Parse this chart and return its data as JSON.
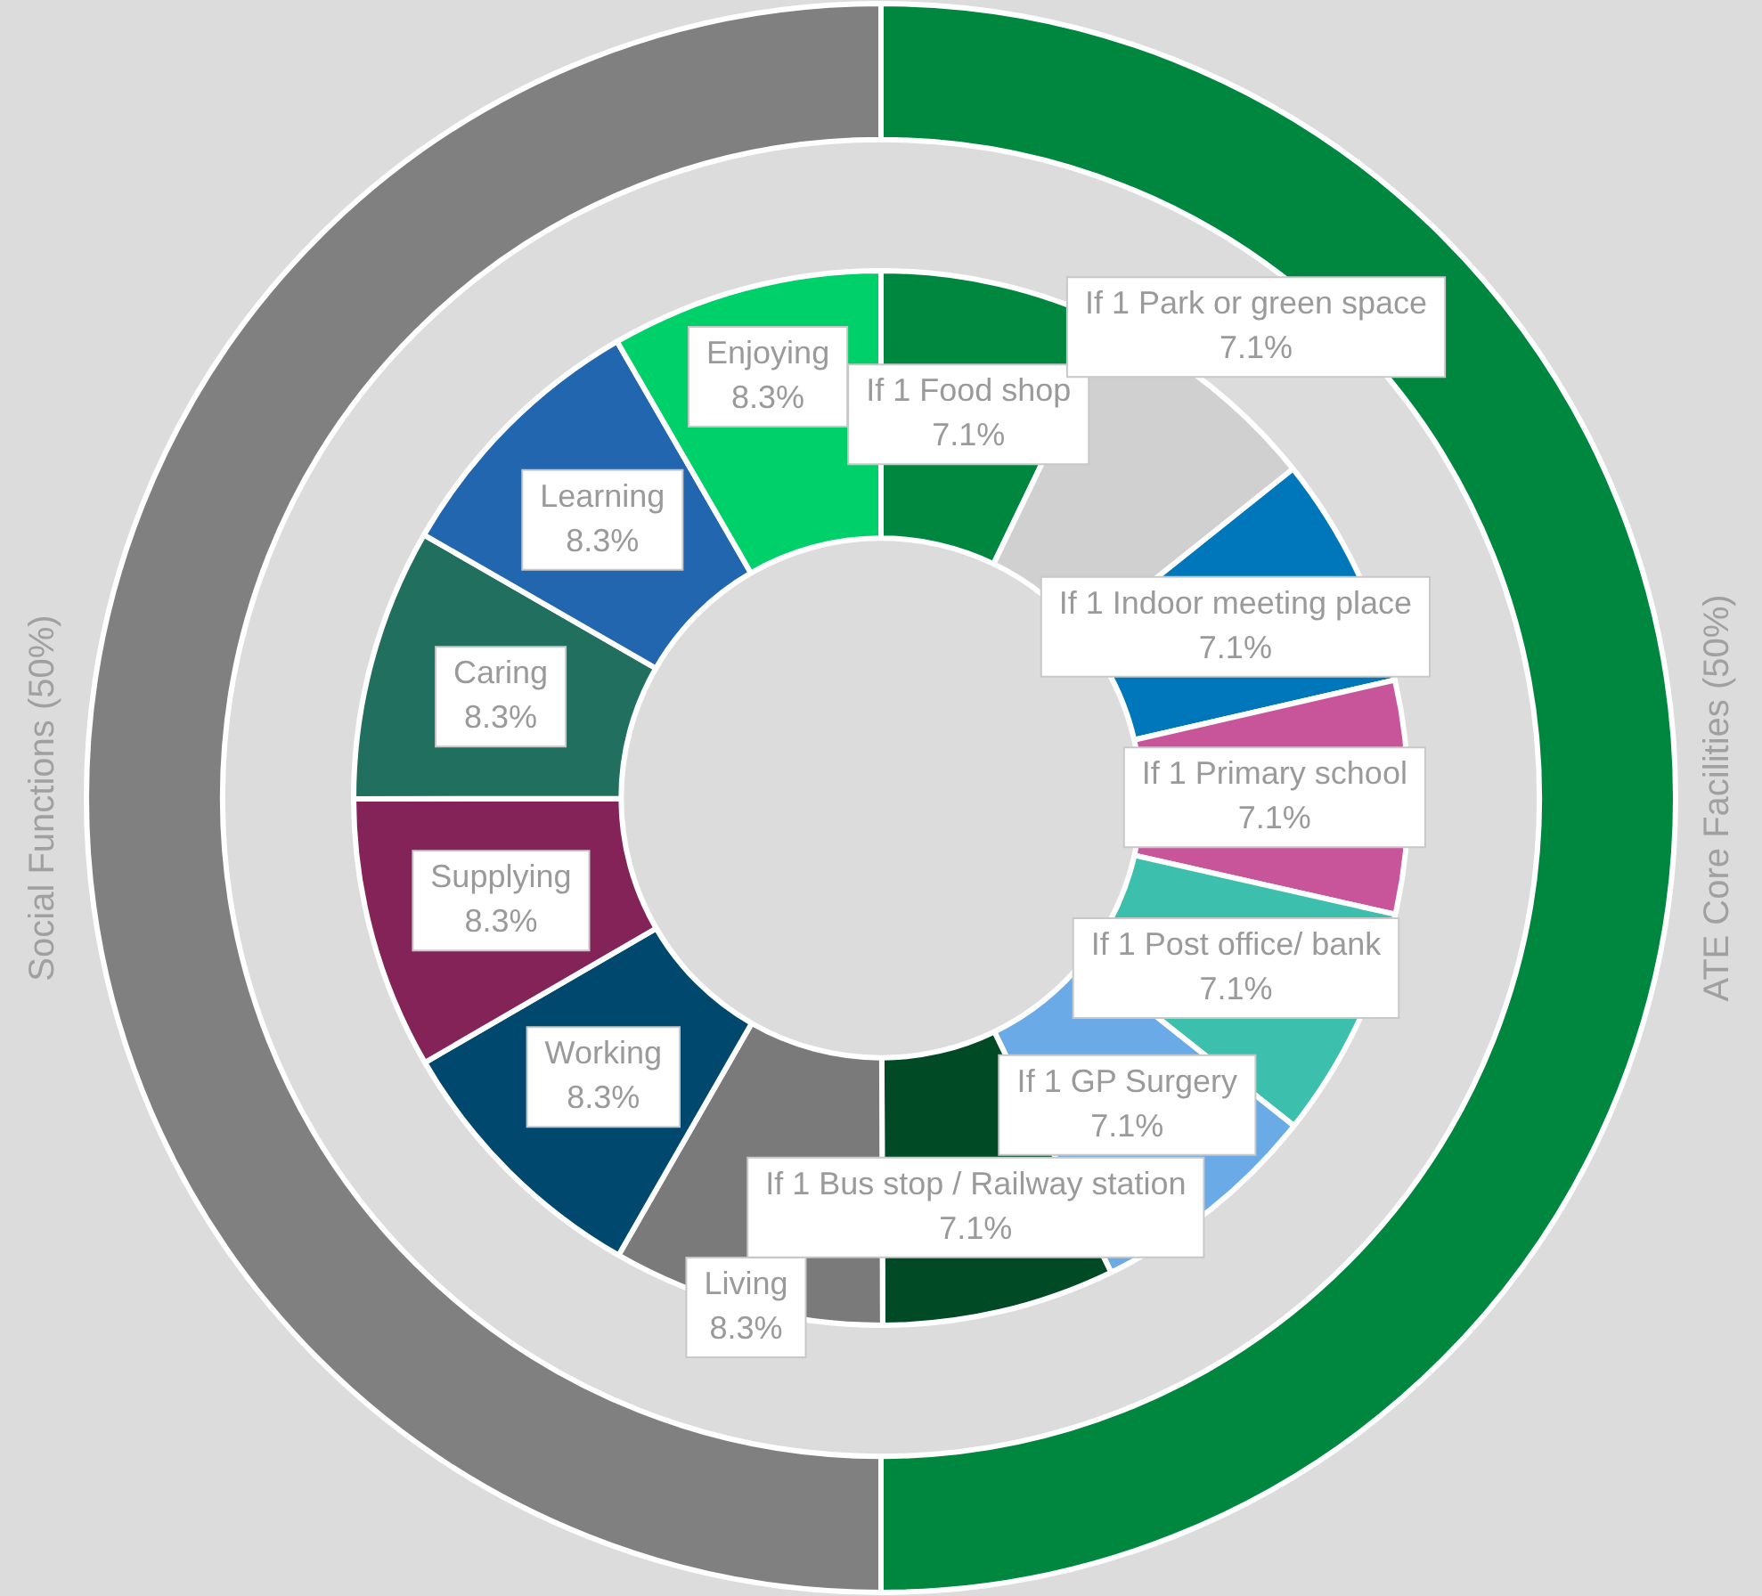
{
  "chart_data": [
    {
      "type": "donut",
      "categories": [
        "ATE Core Facilities",
        "Social Functions"
      ],
      "values": [
        50,
        50
      ],
      "value_labels": [
        "(50%)",
        "(50%)"
      ],
      "colors": [
        "#00873f",
        "#808080"
      ],
      "legend": false
    },
    {
      "type": "donut",
      "categories": [
        "If 1 Food shop",
        "If 1 Park or green space",
        "If 1 Indoor meeting place",
        "If 1 Primary school",
        "If 1 Post office/ bank",
        "If 1 GP Surgery",
        "If 1 Bus stop / Railway station",
        "Living",
        "Working",
        "Supplying",
        "Caring",
        "Learning",
        "Enjoying"
      ],
      "values": [
        7.1,
        7.1,
        7.1,
        7.1,
        7.1,
        7.1,
        7.1,
        8.3,
        8.3,
        8.3,
        8.3,
        8.3,
        8.3
      ],
      "value_labels": [
        "7.1%",
        "7.1%",
        "7.1%",
        "7.1%",
        "7.1%",
        "7.1%",
        "7.1%",
        "8.3%",
        "8.3%",
        "8.3%",
        "8.3%",
        "8.3%",
        "8.3%"
      ],
      "colors": [
        "#00873f",
        "#d0d0d0",
        "#0077bb",
        "#c8559a",
        "#3dbfad",
        "#6aaae6",
        "#004b25",
        "#7a7a7a",
        "#00486e",
        "#842358",
        "#21705f",
        "#2166ae",
        "#00d06a"
      ],
      "legend": false
    }
  ]
}
